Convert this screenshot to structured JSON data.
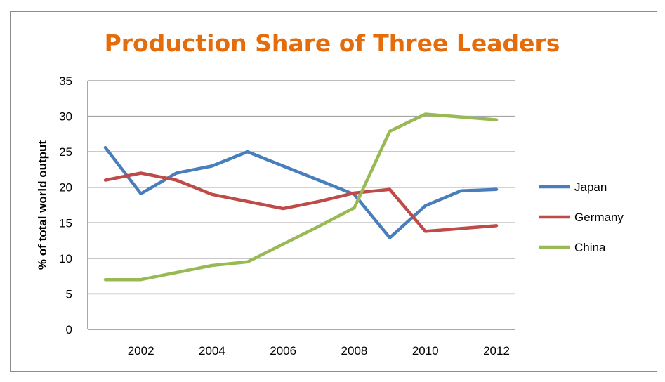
{
  "chart_data": {
    "type": "line",
    "title": "Production Share of Three Leaders",
    "xlabel": "",
    "ylabel": "% of total world output",
    "x": [
      2001,
      2002,
      2003,
      2004,
      2005,
      2006,
      2007,
      2008,
      2009,
      2010,
      2011,
      2012
    ],
    "xticks": [
      2002,
      2004,
      2006,
      2008,
      2010,
      2012
    ],
    "yticks": [
      0,
      5,
      10,
      15,
      20,
      25,
      30,
      35
    ],
    "ylim": [
      0,
      35
    ],
    "grid": true,
    "legend": "right",
    "series": [
      {
        "name": "Japan",
        "color": "#4a7ebb",
        "values": [
          25.6,
          19.1,
          22,
          23,
          25,
          23,
          21,
          19,
          12.9,
          17.4,
          19.5,
          19.7
        ]
      },
      {
        "name": "Germany",
        "color": "#be4b48",
        "values": [
          21,
          22,
          21,
          19,
          18,
          17,
          18,
          19.2,
          19.7,
          13.8,
          14.2,
          14.6
        ]
      },
      {
        "name": "China",
        "color": "#98b954",
        "values": [
          7,
          7,
          8,
          9,
          9.5,
          12,
          14.5,
          17.1,
          27.9,
          30.3,
          29.9,
          29.5
        ]
      }
    ]
  }
}
